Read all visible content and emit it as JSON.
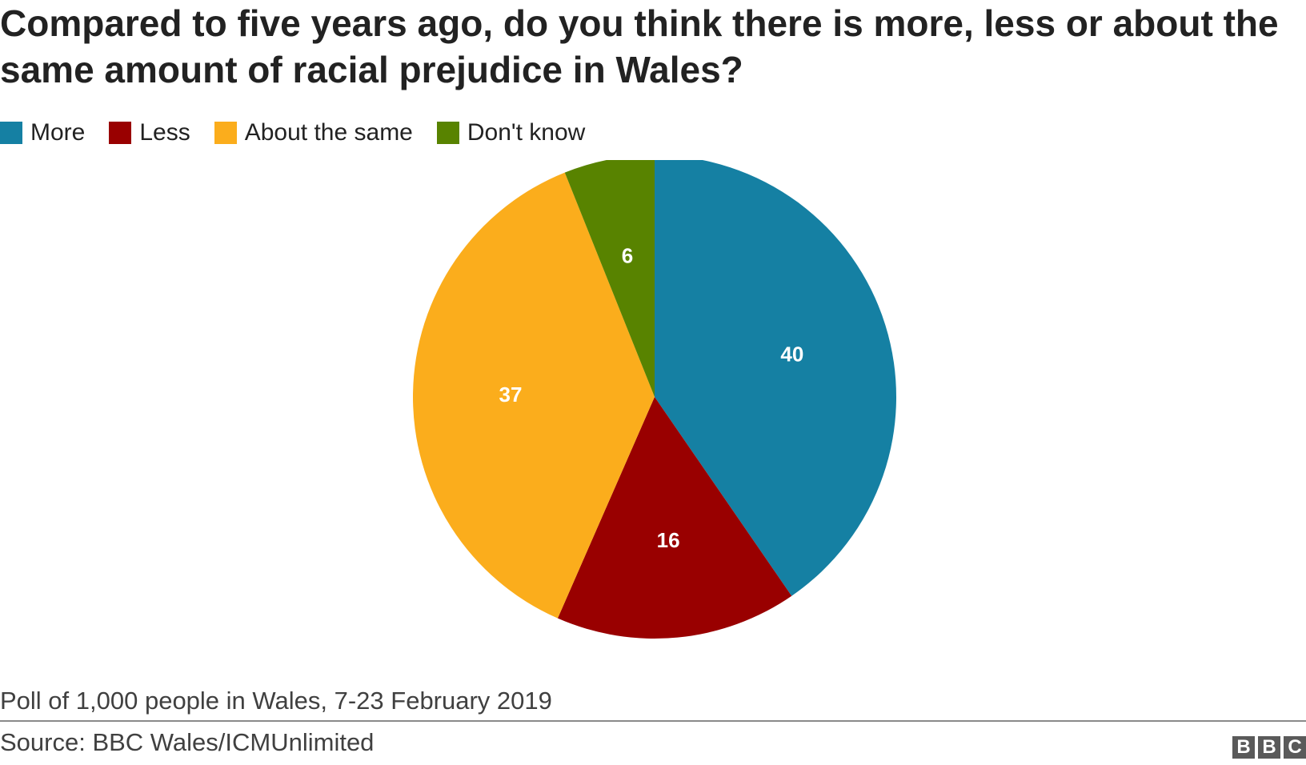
{
  "chart_data": {
    "type": "pie",
    "title": "Compared to five years ago, do you think there is more, less or about the same amount of racial prejudice in Wales?",
    "categories": [
      "More",
      "Less",
      "About the same",
      "Don't know"
    ],
    "values": [
      40,
      16,
      37,
      6
    ],
    "colors": [
      "#1580a3",
      "#990000",
      "#fbad1c",
      "#588300"
    ],
    "legend_position": "top-left",
    "start_angle": "12 o'clock",
    "direction": "clockwise"
  },
  "footnote": "Poll of 1,000 people in Wales, 7-23 February 2019",
  "source": "Source: BBC Wales/ICMUnlimited",
  "logo": {
    "letters": [
      "B",
      "B",
      "C"
    ]
  }
}
